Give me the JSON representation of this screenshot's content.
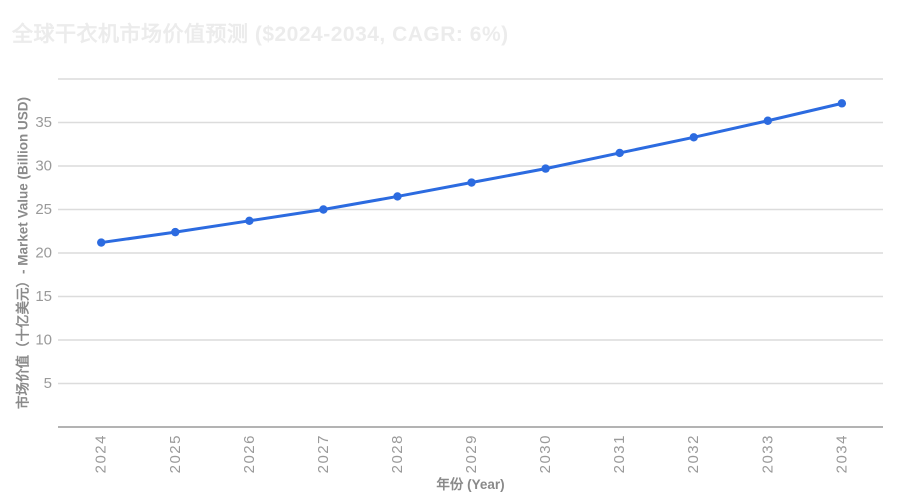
{
  "page": {
    "background": "#ffffff"
  },
  "chart_data": {
    "type": "line",
    "title": "全球干衣机市场价值预测 ($2024-2034, CAGR: 6%)",
    "xlabel": "年份 (Year)",
    "ylabel": "市场价值（十亿美元）- Market Value (Billion USD)",
    "categories": [
      "2024",
      "2025",
      "2026",
      "2027",
      "2028",
      "2029",
      "2030",
      "2031",
      "2032",
      "2033",
      "2034"
    ],
    "values": [
      21.2,
      22.4,
      23.7,
      25.0,
      26.5,
      28.1,
      29.7,
      31.5,
      33.3,
      35.2,
      37.2
    ],
    "ylim": [
      0,
      40
    ],
    "yticks": [
      5,
      10,
      15,
      20,
      25,
      30,
      35
    ],
    "grid": true,
    "legend": "none",
    "x_tick_rotation_deg": -90,
    "colors": {
      "line": "#2c6be0",
      "point": "#2c6be0",
      "grid": "#dcdcdc",
      "axis": "#b3b3b3",
      "tick_label": "#9a9a9a",
      "axis_title": "#8a8a8a",
      "chart_title": "#ececec"
    }
  }
}
